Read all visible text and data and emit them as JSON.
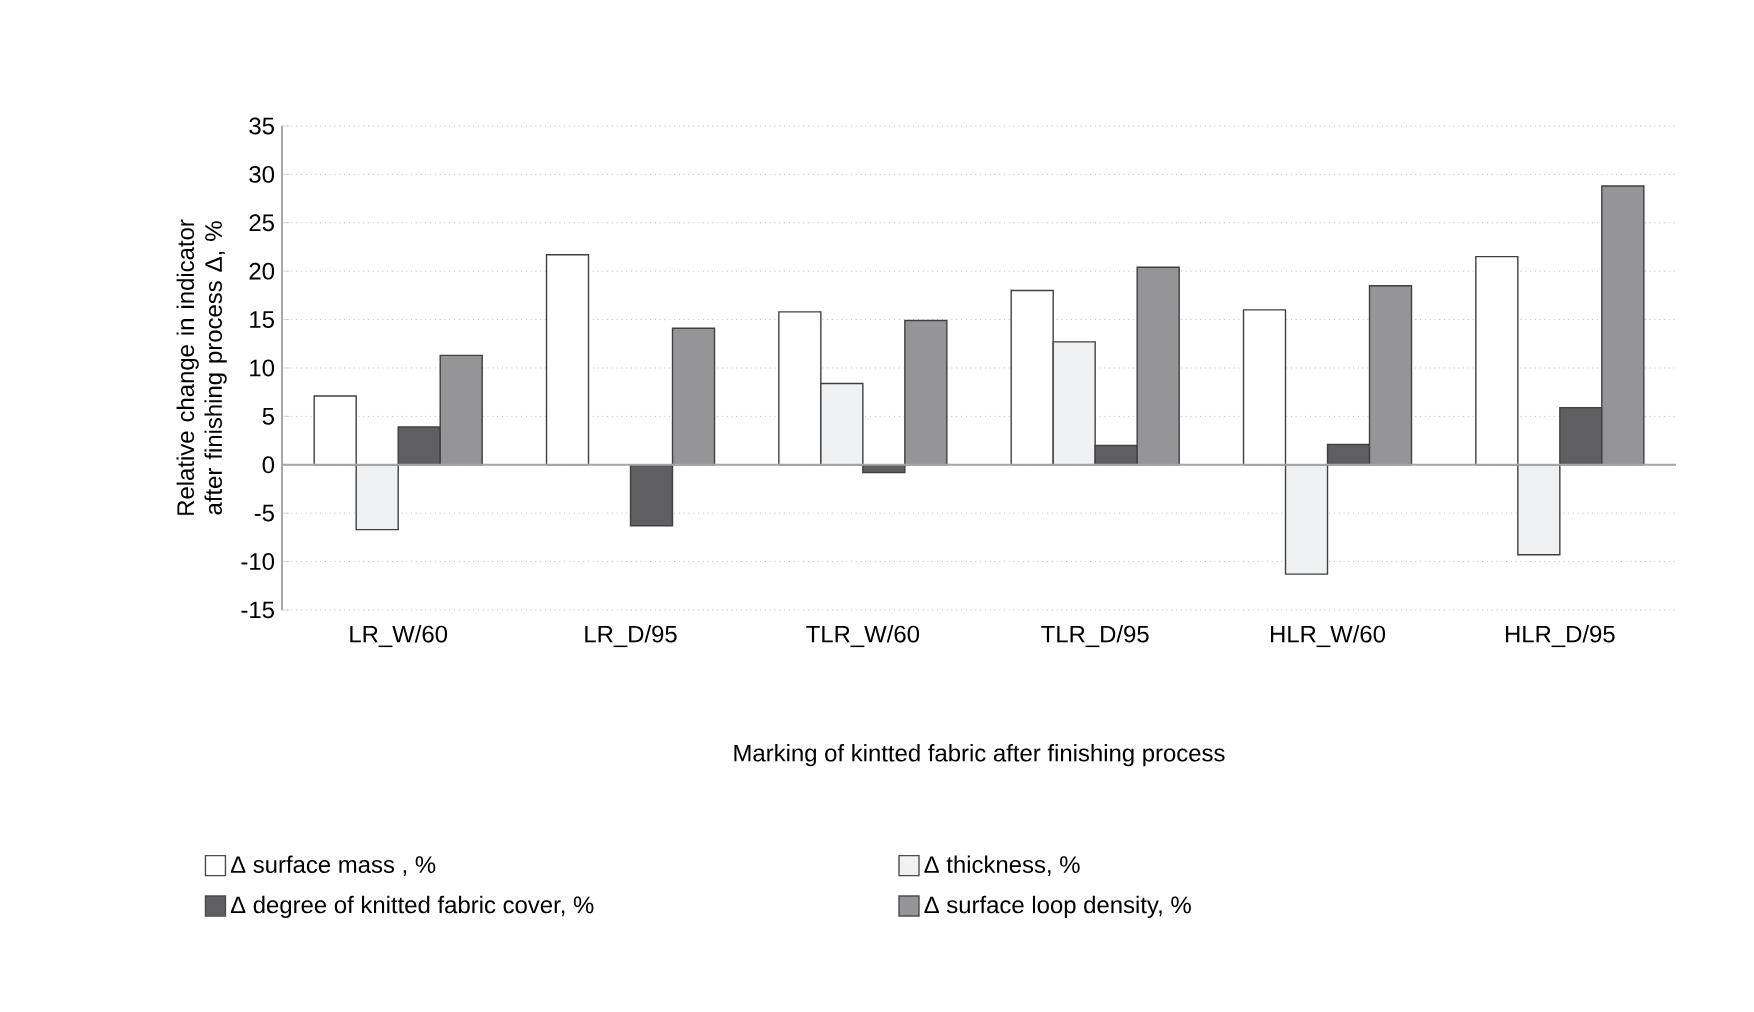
{
  "chart_data": {
    "type": "bar",
    "xlabel": "Marking of kintted fabric after finishing process",
    "ylabel": "Relative change in indicator after finishing process Δ, %",
    "categories": [
      "LR_W/60",
      "LR_D/95",
      "TLR_W/60",
      "TLR_D/95",
      "HLR_W/60",
      "HLR_D/95"
    ],
    "series": [
      {
        "name": "Δ surface mass , %",
        "color": "#ffffff",
        "values": [
          7.1,
          21.7,
          15.8,
          18.0,
          16.0,
          21.5
        ]
      },
      {
        "name": "Δ thickness, %",
        "color": "#f0f1f2",
        "values": [
          -6.7,
          null,
          8.4,
          12.7,
          -11.3,
          -9.3
        ]
      },
      {
        "name": "Δ degree of knitted fabric cover, %",
        "color": "#5f5f61",
        "values": [
          3.9,
          -6.3,
          -0.8,
          2.0,
          2.1,
          5.9
        ]
      },
      {
        "name": "Δ surface loop density, %",
        "color": "#959598",
        "values": [
          11.3,
          14.1,
          14.9,
          20.4,
          18.5,
          28.8
        ]
      }
    ],
    "ylim": [
      -15,
      35
    ],
    "yticks": [
      -15,
      -10,
      -5,
      0,
      5,
      10,
      15,
      20,
      25,
      30,
      35
    ],
    "grid": "y",
    "legend": "bottom"
  }
}
